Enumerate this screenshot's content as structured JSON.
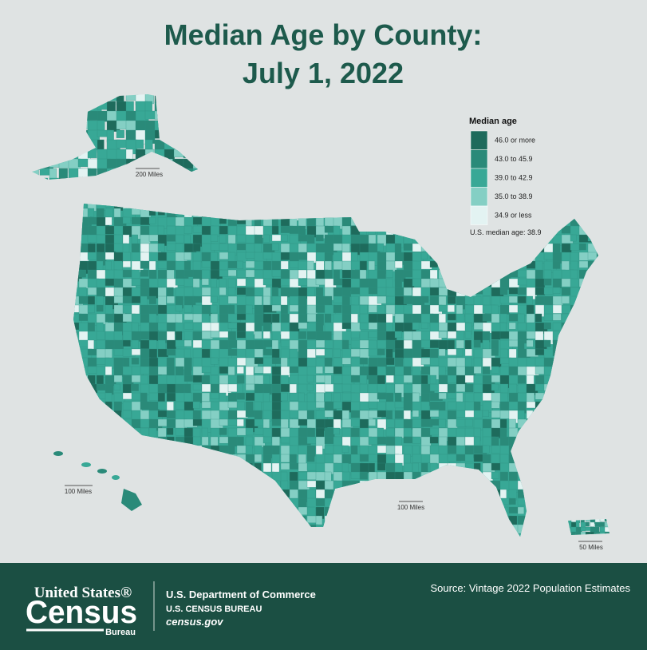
{
  "title": [
    "Median Age by County:",
    "July 1, 2022"
  ],
  "legend": {
    "title": "Median age",
    "items": [
      {
        "label": "46.0 or more",
        "color": "#1e6b5c"
      },
      {
        "label": "43.0 to 45.9",
        "color": "#2a8a79"
      },
      {
        "label": "39.0 to 42.9",
        "color": "#38a896"
      },
      {
        "label": "35.0 to 38.9",
        "color": "#84cfc4"
      },
      {
        "label": "34.9 or less",
        "color": "#e3f3f2"
      }
    ],
    "note": "U.S. median age: 38.9"
  },
  "scale_labels": {
    "alaska": "200 Miles",
    "hawaii": "100 Miles",
    "conus": "100 Miles",
    "puerto_rico": "50 Miles"
  },
  "footer": {
    "logo_line1": "United States®",
    "logo_line2": "Census",
    "logo_line3": "Bureau",
    "department": "U.S. Department of Commerce",
    "bureau": "U.S. CENSUS BUREAU",
    "url": "census.gov",
    "source": "Source: Vintage 2022 Population Estimates"
  }
}
